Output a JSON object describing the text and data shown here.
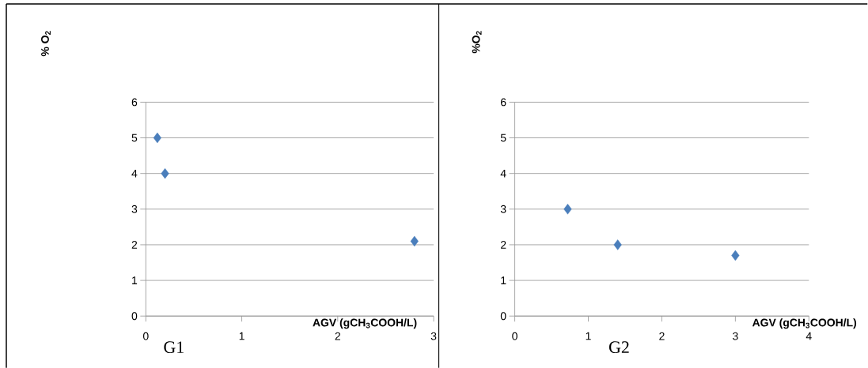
{
  "chart_data": [
    {
      "type": "scatter",
      "ylabel": "% O$_{2}$",
      "xlabel": "AGV (gCH$_{3}$COOH/L)",
      "annotations": [
        "G1"
      ],
      "x": [
        0.12,
        0.2,
        2.8
      ],
      "values": [
        5,
        4,
        2.1
      ],
      "color": "#4a7ebb",
      "marker": "diamond",
      "xlim": [
        0,
        3
      ],
      "xticks": [
        0,
        1,
        2,
        3
      ],
      "ylim": [
        0,
        6
      ],
      "yticks": [
        0,
        1,
        2,
        3,
        4,
        5,
        6
      ],
      "grid": "y"
    },
    {
      "type": "scatter",
      "ylabel": "%O$_{2}$",
      "xlabel": "AGV (gCH$_{3}$COOH/L)",
      "annotations": [
        "G2"
      ],
      "x": [
        0.72,
        1.4,
        3
      ],
      "values": [
        3,
        2,
        1.7
      ],
      "color": "#4a7ebb",
      "marker": "diamond",
      "xlim": [
        0,
        4
      ],
      "xticks": [
        0,
        1,
        2,
        3,
        4
      ],
      "ylim": [
        0,
        6
      ],
      "yticks": [
        0,
        1,
        2,
        3,
        4,
        5,
        6
      ],
      "grid": "y"
    }
  ]
}
